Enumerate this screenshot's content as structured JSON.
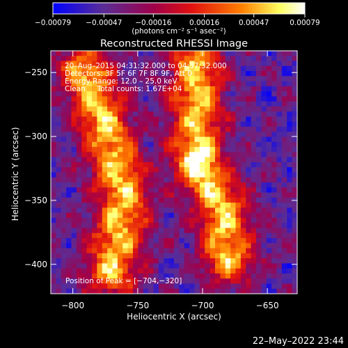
{
  "chart_data": {
    "type": "heatmap",
    "title": "Reconstructed RHESSI Image",
    "xlabel": "Heliocentric X (arcsec)",
    "ylabel": "Heliocentric Y (arcsec)",
    "xlim": [
      -817,
      -627
    ],
    "ylim": [
      -423,
      -233
    ],
    "x_ticks": [
      -800,
      -750,
      -700,
      -650
    ],
    "y_ticks": [
      -400,
      -350,
      -300,
      -250
    ],
    "x_tick_labels": [
      "−800",
      "−750",
      "−700",
      "−650"
    ],
    "y_tick_labels": [
      "−400",
      "−350",
      "−300",
      "−250"
    ],
    "colorbar": {
      "range": [
        -0.00079,
        0.00079
      ],
      "ticks": [
        -0.00079,
        -0.00047,
        -0.00016,
        0.00016,
        0.00047,
        0.00079
      ],
      "tick_labels": [
        "−0.00079",
        "−0.00047",
        "−0.00016",
        "0.00016",
        "0.00047",
        "0.00079"
      ],
      "units": "(photons cm⁻² s⁻¹ asec⁻²)",
      "colors": [
        "#0000ff",
        "#5a2d96",
        "#a0004a",
        "#e01010",
        "#ff8000",
        "#ffff60",
        "#ffffff"
      ]
    },
    "annotations": [
      "20–Aug–2015 04:31:32.000 to 04:37:32.000",
      "Detectors: 3F 5F 6F 7F 8F 9F, Att 0",
      "Energy Range: 12.0 – 25.0 keV",
      "Clean     Total counts: 1.67E+04"
    ],
    "peak_label": "Position of Peak = [−704,−320]",
    "peak": [
      -704,
      -320
    ],
    "bright_ridges": [
      {
        "name": "left",
        "points": [
          [
            -790,
            -250
          ],
          [
            -772,
            -300
          ],
          [
            -760,
            -350
          ],
          [
            -770,
            -405
          ]
        ]
      },
      {
        "name": "right",
        "points": [
          [
            -705,
            -245
          ],
          [
            -704,
            -320
          ],
          [
            -685,
            -355
          ],
          [
            -680,
            -395
          ]
        ]
      }
    ]
  },
  "footer": {
    "timestamp": "22–May–2022 23:44"
  }
}
